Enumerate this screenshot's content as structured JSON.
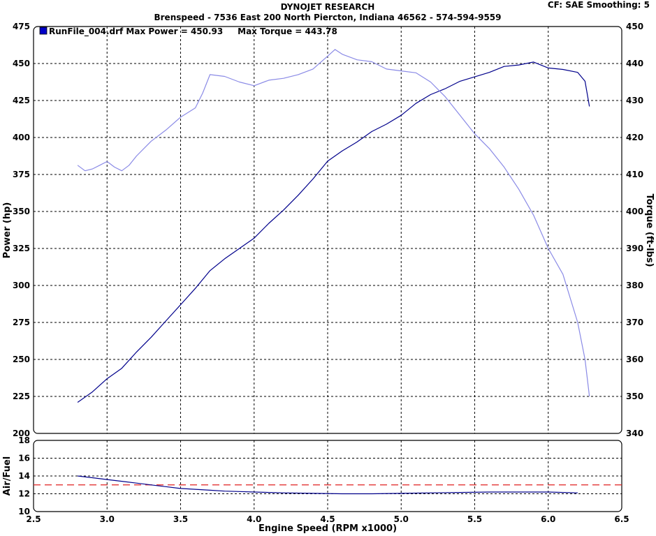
{
  "header": {
    "title": "DYNOJET RESEARCH",
    "subtitle": "Brenspeed - 7536 East 200 North  Piercton, Indiana 46562 - 574-594-9559",
    "cf_label": "CF: SAE  Smoothing: 5"
  },
  "legend": {
    "run_text": "RunFile_004.drf Max Power = 450.93     Max Torque = 443.78",
    "color": "#0000c8"
  },
  "colors": {
    "power": "#00008b",
    "torque": "#8a8ae6",
    "target": "#e02020"
  },
  "chart_data": [
    {
      "type": "line",
      "name": "power-torque-chart",
      "ylabel": "Power (hp)",
      "y2label": "Torque (ft-lbs)",
      "xlim": [
        2.5,
        6.5
      ],
      "ylim": [
        200,
        475
      ],
      "y2lim": [
        340,
        450
      ],
      "x_ticks": [
        2.5,
        3.0,
        3.5,
        4.0,
        4.5,
        5.0,
        5.5,
        6.0,
        6.5
      ],
      "y_ticks": [
        200,
        225,
        250,
        275,
        300,
        325,
        350,
        375,
        400,
        425,
        450,
        475
      ],
      "y2_ticks": [
        340,
        350,
        360,
        370,
        380,
        390,
        400,
        410,
        420,
        430,
        440,
        450
      ],
      "grid": true,
      "series": [
        {
          "key": "power",
          "axis": "left",
          "x": [
            2.8,
            2.9,
            3.0,
            3.1,
            3.2,
            3.3,
            3.4,
            3.5,
            3.6,
            3.7,
            3.8,
            3.9,
            4.0,
            4.1,
            4.2,
            4.3,
            4.4,
            4.5,
            4.6,
            4.7,
            4.8,
            4.9,
            5.0,
            5.1,
            5.2,
            5.3,
            5.4,
            5.5,
            5.6,
            5.7,
            5.8,
            5.9,
            6.0,
            6.1,
            6.2,
            6.25,
            6.28
          ],
          "values": [
            221,
            228,
            237,
            244,
            255,
            265,
            276,
            287,
            298,
            310,
            318,
            325,
            332,
            342,
            351,
            361,
            372,
            384,
            391,
            397,
            404,
            409,
            415,
            423,
            429,
            433,
            438,
            441,
            444,
            448,
            449,
            451,
            447,
            446,
            444,
            438,
            421
          ]
        },
        {
          "key": "torque",
          "axis": "right",
          "x": [
            2.8,
            2.85,
            2.9,
            2.95,
            3.0,
            3.05,
            3.1,
            3.15,
            3.2,
            3.3,
            3.4,
            3.5,
            3.6,
            3.65,
            3.7,
            3.8,
            3.9,
            4.0,
            4.1,
            4.2,
            4.3,
            4.4,
            4.5,
            4.55,
            4.6,
            4.7,
            4.8,
            4.9,
            5.0,
            5.1,
            5.2,
            5.3,
            5.4,
            5.5,
            5.6,
            5.7,
            5.8,
            5.9,
            6.0,
            6.1,
            6.2,
            6.25,
            6.28
          ],
          "values": [
            412.5,
            411,
            411.5,
            412.5,
            413.5,
            412,
            411,
            412.5,
            415,
            419,
            422,
            425.5,
            428,
            432,
            437,
            436.5,
            435,
            434,
            435.5,
            436,
            437,
            438.5,
            442,
            443.8,
            442.5,
            441,
            440.5,
            438.5,
            438,
            437.5,
            435,
            431,
            426,
            421,
            417,
            412,
            406,
            399,
            390,
            383,
            370,
            360,
            350
          ]
        }
      ]
    },
    {
      "type": "line",
      "name": "air-fuel-chart",
      "ylabel": "Air/Fuel",
      "xlabel": "Engine Speed (RPM x1000)",
      "xlim": [
        2.5,
        6.5
      ],
      "ylim": [
        10,
        18
      ],
      "y_ticks": [
        10,
        12,
        14,
        16,
        18
      ],
      "x_ticks": [
        2.5,
        3.0,
        3.5,
        4.0,
        4.5,
        5.0,
        5.5,
        6.0,
        6.5
      ],
      "grid": true,
      "target_line": 13,
      "series": [
        {
          "key": "afr",
          "x": [
            2.8,
            2.9,
            3.0,
            3.1,
            3.2,
            3.3,
            3.4,
            3.5,
            3.6,
            3.7,
            3.8,
            3.9,
            4.0,
            4.2,
            4.4,
            4.6,
            4.8,
            5.0,
            5.2,
            5.4,
            5.6,
            5.8,
            6.0,
            6.2
          ],
          "values": [
            14.0,
            13.8,
            13.6,
            13.4,
            13.2,
            13.0,
            12.8,
            12.6,
            12.5,
            12.4,
            12.3,
            12.25,
            12.2,
            12.1,
            12.05,
            12.0,
            12.0,
            12.05,
            12.1,
            12.15,
            12.2,
            12.2,
            12.2,
            12.1
          ]
        }
      ]
    }
  ]
}
